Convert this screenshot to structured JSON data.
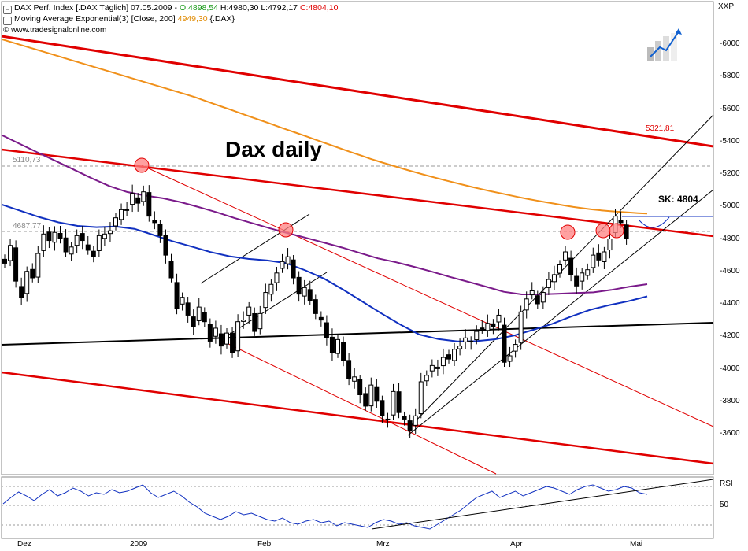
{
  "header": {
    "instrument": "DAX Perf. Index [.DAX  Täglich]",
    "date": "07.05.2009",
    "open": "O:4898,54",
    "high": "H:4980,30",
    "low": "L:4792,17",
    "close": "C:4804,10",
    "ma_label": "Moving Average Exponential(3) [Close, 200]",
    "ma_value": "4949,30",
    "ma_symbol": "{.DAX}",
    "source": "www.tradesignalonline.com"
  },
  "title": "Dax daily",
  "annotation": "SK: 4804",
  "levels": {
    "upper_dashed": "5110,73",
    "lower_dashed": "4687,77",
    "red_line_value": "5321,81"
  },
  "axis_unit": "XXP",
  "rsi_label": "RSI",
  "rsi_tick": "50",
  "colors": {
    "price_up": "#ffffff",
    "price_down": "#000000",
    "ema200": "#f0901a",
    "ma_purple": "#7a1a8a",
    "ma_blue": "#1030c0",
    "trend_red": "#e00000",
    "circle_fill": "#ff8080",
    "rsi_line": "#1030c0"
  },
  "chart_data": {
    "type": "candlestick",
    "title": "Dax daily",
    "ylim": [
      3400,
      6100
    ],
    "y_ticks": [
      3600,
      3800,
      4000,
      4200,
      4400,
      4600,
      4800,
      5000,
      5200,
      5400,
      5600,
      5800,
      6000
    ],
    "x_tick_labels": [
      "Dez",
      "2009",
      "Feb",
      "Mrz",
      "Apr",
      "Mai"
    ],
    "close_series": [
      4650,
      4760,
      4540,
      4440,
      4600,
      4560,
      4710,
      4830,
      4790,
      4840,
      4800,
      4720,
      4750,
      4820,
      4790,
      4730,
      4690,
      4820,
      4830,
      4850,
      4930,
      4980,
      4980,
      5080,
      5020,
      5090,
      4940,
      4900,
      4820,
      4700,
      4560,
      4370,
      4440,
      4330,
      4260,
      4380,
      4290,
      4170,
      4250,
      4140,
      4220,
      4100,
      4290,
      4300,
      4380,
      4230,
      4340,
      4470,
      4520,
      4590,
      4660,
      4690,
      4560,
      4460,
      4500,
      4420,
      4340,
      4300,
      4190,
      4100,
      4180,
      4050,
      3940,
      3950,
      3840,
      3770,
      3900,
      3800,
      3710,
      3690,
      3860,
      3730,
      3690,
      3620,
      3710,
      3920,
      3960,
      4020,
      4010,
      4070,
      4060,
      4120,
      4140,
      4190,
      4170,
      4230,
      4250,
      4280,
      4260,
      4330,
      4040,
      4080,
      4150,
      4350,
      4430,
      4480,
      4400,
      4470,
      4550,
      4580,
      4640,
      4720,
      4580,
      4510,
      4590,
      4610,
      4700,
      4670,
      4720,
      4800,
      4940,
      4900,
      4804
    ],
    "ema200": [
      6030,
      6013,
      5996,
      5979,
      5962,
      5945,
      5928,
      5911,
      5894,
      5877,
      5860,
      5843,
      5826,
      5809,
      5792,
      5775,
      5758,
      5741,
      5724,
      5707,
      5690,
      5672,
      5652,
      5632,
      5612,
      5592,
      5572,
      5552,
      5532,
      5512,
      5492,
      5472,
      5452,
      5432,
      5412,
      5392,
      5372,
      5352,
      5332,
      5313,
      5293,
      5275,
      5258,
      5241,
      5224,
      5208,
      5192,
      5177,
      5162,
      5148,
      5134,
      5120,
      5107,
      5094,
      5082,
      5070,
      5058,
      5047,
      5036,
      5026,
      5016,
      5006,
      4997,
      4989,
      4982,
      4976,
      4971,
      4967,
      4963,
      4959,
      4956
    ],
    "ma_purple": [
      5440,
      5386,
      5333,
      5281,
      5228,
      5175,
      5126,
      5089,
      5067,
      5050,
      5026,
      4996,
      4964,
      4928,
      4896,
      4864,
      4834,
      4806,
      4776,
      4746,
      4712,
      4680,
      4656,
      4628,
      4598,
      4566,
      4536,
      4506,
      4474,
      4458,
      4458,
      4462,
      4467,
      4471,
      4486,
      4505,
      4521
    ],
    "ma_blue": [
      5012,
      4973,
      4934,
      4902,
      4880,
      4872,
      4876,
      4862,
      4824,
      4786,
      4753,
      4719,
      4693,
      4677,
      4667,
      4650,
      4606,
      4554,
      4487,
      4414,
      4341,
      4272,
      4211,
      4183,
      4168,
      4170,
      4182,
      4205,
      4240,
      4277,
      4322,
      4363,
      4392,
      4416,
      4446
    ],
    "sk_close": 4804,
    "upper_level": 5110.73,
    "lower_level": 4687.77,
    "red_line_level": 5321.81
  }
}
